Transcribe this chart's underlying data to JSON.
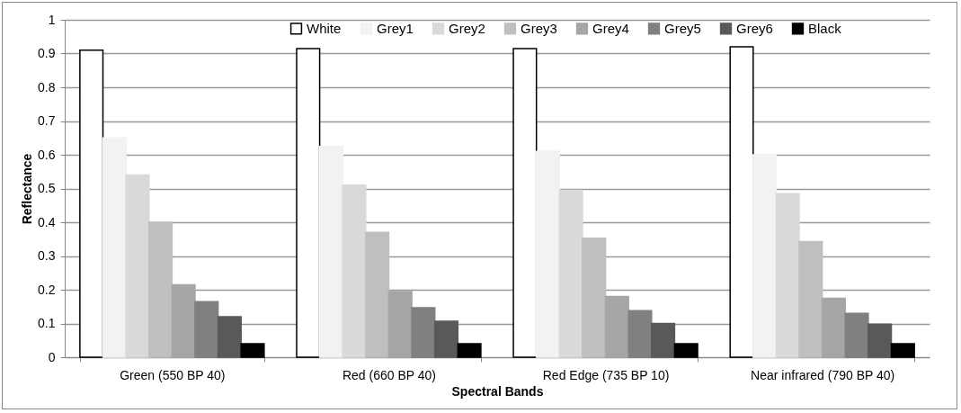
{
  "chart_data": {
    "type": "bar",
    "xlabel": "Spectral Bands",
    "ylabel": "Reflectance",
    "categories": [
      "Green (550 BP 40)",
      "Red (660 BP 40)",
      "Red Edge (735 BP 10)",
      "Near infrared (790 BP 40)"
    ],
    "series": [
      {
        "name": "White",
        "color": "#ffffff",
        "values": [
          0.91,
          0.915,
          0.915,
          0.92
        ]
      },
      {
        "name": "Grey1",
        "color": "#f2f2f2",
        "values": [
          0.65,
          0.625,
          0.61,
          0.6
        ]
      },
      {
        "name": "Grey2",
        "color": "#d9d9d9",
        "values": [
          0.54,
          0.51,
          0.495,
          0.485
        ]
      },
      {
        "name": "Grey3",
        "color": "#bfbfbf",
        "values": [
          0.4,
          0.37,
          0.353,
          0.343
        ]
      },
      {
        "name": "Grey4",
        "color": "#a6a6a6",
        "values": [
          0.215,
          0.195,
          0.18,
          0.175
        ]
      },
      {
        "name": "Grey5",
        "color": "#808080",
        "values": [
          0.165,
          0.147,
          0.138,
          0.13
        ]
      },
      {
        "name": "Grey6",
        "color": "#595959",
        "values": [
          0.12,
          0.107,
          0.1,
          0.098
        ]
      },
      {
        "name": "Black",
        "color": "#000000",
        "values": [
          0.04,
          0.04,
          0.04,
          0.04
        ]
      }
    ],
    "ylim": [
      0,
      1
    ],
    "yticks": [
      0,
      0.1,
      0.2,
      0.3,
      0.4,
      0.5,
      0.6,
      0.7,
      0.8,
      0.9,
      1
    ],
    "grid": "y",
    "legend": "top"
  }
}
